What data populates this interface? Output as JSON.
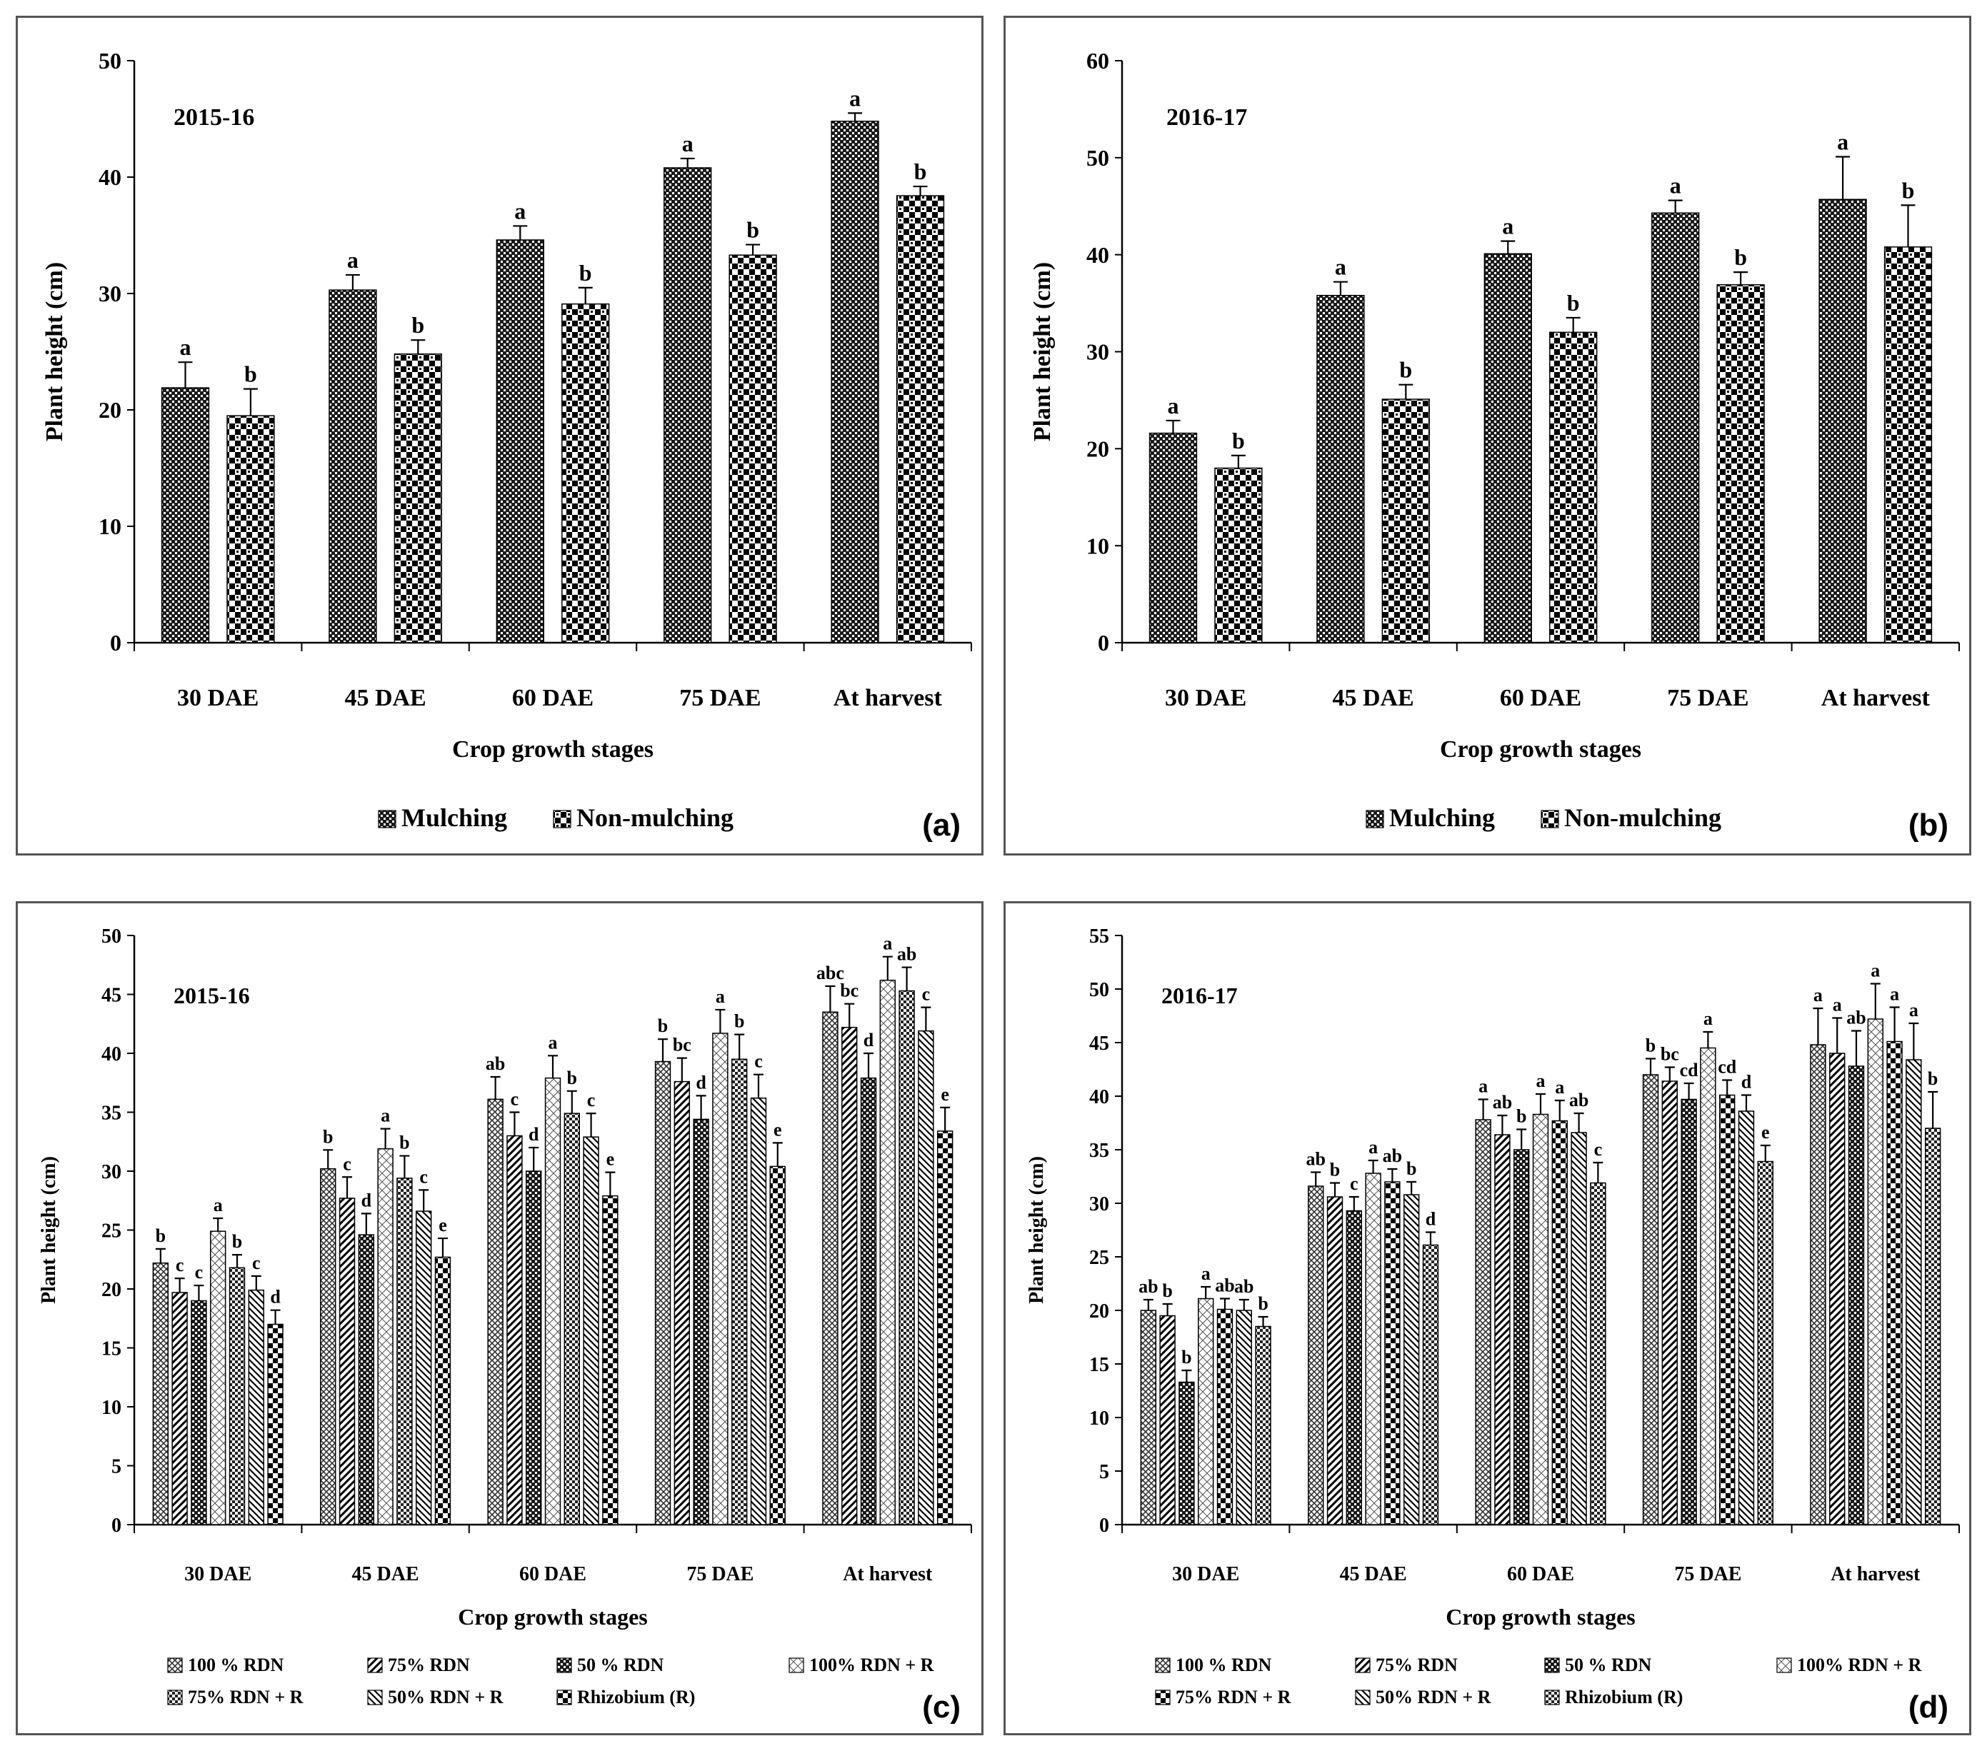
{
  "chart_data": [
    {
      "id": "a",
      "type": "bar",
      "panel_label": "(a)",
      "year_label": "2015-16",
      "xlabel": "Crop growth stages",
      "ylabel": "Plant height (cm)",
      "ylim": [
        0,
        50
      ],
      "ytick_step": 10,
      "categories": [
        "30 DAE",
        "45 DAE",
        "60 DAE",
        "75 DAE",
        "At harvest"
      ],
      "series": [
        {
          "name": "Mulching",
          "pattern": "dark-check",
          "values": [
            21.9,
            30.3,
            34.6,
            40.8,
            44.8
          ],
          "errors": [
            2.2,
            1.3,
            1.2,
            0.8,
            0.7
          ],
          "letters": [
            "a",
            "a",
            "a",
            "a",
            "a"
          ]
        },
        {
          "name": "Non-mulching",
          "pattern": "light-check",
          "values": [
            19.5,
            24.8,
            29.1,
            33.3,
            38.4
          ],
          "errors": [
            2.3,
            1.2,
            1.4,
            0.9,
            0.8
          ],
          "letters": [
            "b",
            "b",
            "b",
            "b",
            "b"
          ]
        }
      ]
    },
    {
      "id": "b",
      "type": "bar",
      "panel_label": "(b)",
      "year_label": "2016-17",
      "xlabel": "Crop growth stages",
      "ylabel": "Plant height (cm)",
      "ylim": [
        0,
        60
      ],
      "ytick_step": 10,
      "categories": [
        "30 DAE",
        "45 DAE",
        "60 DAE",
        "75 DAE",
        "At harvest"
      ],
      "series": [
        {
          "name": "Mulching",
          "pattern": "dark-check",
          "values": [
            21.6,
            35.8,
            40.1,
            44.3,
            45.7
          ],
          "errors": [
            1.3,
            1.4,
            1.3,
            1.3,
            4.4
          ],
          "letters": [
            "a",
            "a",
            "a",
            "a",
            "a"
          ]
        },
        {
          "name": "Non-mulching",
          "pattern": "light-check",
          "values": [
            18.0,
            25.1,
            32.0,
            36.9,
            40.8
          ],
          "errors": [
            1.3,
            1.5,
            1.5,
            1.3,
            4.3
          ],
          "letters": [
            "b",
            "b",
            "b",
            "b",
            "b"
          ]
        }
      ]
    },
    {
      "id": "c",
      "type": "bar",
      "panel_label": "(c)",
      "year_label": "2015-16",
      "xlabel": "Crop growth stages",
      "ylabel": "Plant height (cm)",
      "ylim": [
        0,
        50
      ],
      "ytick_step": 5,
      "categories": [
        "30 DAE",
        "45 DAE",
        "60 DAE",
        "75 DAE",
        "At harvest"
      ],
      "series": [
        {
          "name": "100 % RDN",
          "pattern": "lattice",
          "values": [
            22.2,
            30.2,
            36.1,
            39.3,
            43.5
          ],
          "errors": [
            1.2,
            1.6,
            1.9,
            1.9,
            2.2
          ],
          "letters": [
            "b",
            "b",
            "ab",
            "b",
            "abc"
          ]
        },
        {
          "name": "75% RDN",
          "pattern": "wide-diag",
          "values": [
            19.7,
            27.7,
            33.0,
            37.6,
            42.2
          ],
          "errors": [
            1.2,
            1.8,
            2.0,
            2.0,
            2.0
          ],
          "letters": [
            "c",
            "c",
            "c",
            "bc",
            "bc"
          ]
        },
        {
          "name": "50 % RDN",
          "pattern": "dark-check",
          "values": [
            19.0,
            24.6,
            30.0,
            34.4,
            37.9
          ],
          "errors": [
            1.3,
            1.8,
            2.0,
            2.0,
            2.1
          ],
          "letters": [
            "c",
            "d",
            "d",
            "d",
            "d"
          ]
        },
        {
          "name": "100% RDN + R",
          "pattern": "light-lattice",
          "values": [
            24.9,
            31.9,
            37.9,
            41.7,
            46.2
          ],
          "errors": [
            1.1,
            1.7,
            1.9,
            2.0,
            2.0
          ],
          "letters": [
            "a",
            "a",
            "a",
            "a",
            "a"
          ]
        },
        {
          "name": "75% RDN + R",
          "pattern": "tight-check",
          "values": [
            21.8,
            29.4,
            34.9,
            39.5,
            45.3
          ],
          "errors": [
            1.1,
            1.9,
            1.9,
            2.1,
            2.0
          ],
          "letters": [
            "b",
            "b",
            "b",
            "b",
            "ab"
          ]
        },
        {
          "name": "50% RDN + R",
          "pattern": "back-diag",
          "values": [
            19.9,
            26.6,
            32.9,
            36.2,
            41.9
          ],
          "errors": [
            1.2,
            1.8,
            2.0,
            2.0,
            2.0
          ],
          "letters": [
            "c",
            "c",
            "c",
            "c",
            "c"
          ]
        },
        {
          "name": "Rhizobium (R)",
          "pattern": "big-check",
          "values": [
            17.0,
            22.7,
            27.9,
            30.4,
            33.4
          ],
          "errors": [
            1.2,
            1.6,
            2.0,
            2.0,
            2.0
          ],
          "letters": [
            "d",
            "e",
            "e",
            "e",
            "e"
          ]
        }
      ]
    },
    {
      "id": "d",
      "type": "bar",
      "panel_label": "(d)",
      "year_label": "2016-17",
      "xlabel": "Crop growth stages",
      "ylabel": "Plant height (cm)",
      "ylim": [
        0,
        55
      ],
      "ytick_step": 5,
      "categories": [
        "30 DAE",
        "45 DAE",
        "60 DAE",
        "75 DAE",
        "At harvest"
      ],
      "series": [
        {
          "name": "100 % RDN",
          "pattern": "lattice",
          "values": [
            20.0,
            31.6,
            37.8,
            42.0,
            44.8
          ],
          "errors": [
            1.0,
            1.3,
            1.9,
            1.5,
            3.4
          ],
          "letters": [
            "ab",
            "ab",
            "a",
            "b",
            "a"
          ]
        },
        {
          "name": "75% RDN",
          "pattern": "wide-diag",
          "values": [
            19.5,
            30.6,
            36.4,
            41.4,
            44.0
          ],
          "errors": [
            1.1,
            1.3,
            1.8,
            1.3,
            3.3
          ],
          "letters": [
            "b",
            "b",
            "ab",
            "bc",
            "a"
          ]
        },
        {
          "name": "50 % RDN",
          "pattern": "dark-check",
          "values": [
            13.3,
            29.3,
            35.0,
            39.7,
            42.8
          ],
          "errors": [
            1.1,
            1.3,
            1.9,
            1.5,
            3.3
          ],
          "letters": [
            "b",
            "c",
            "b",
            "cd",
            "ab"
          ]
        },
        {
          "name": "100% RDN + R",
          "pattern": "light-lattice",
          "values": [
            21.1,
            32.8,
            38.3,
            44.5,
            47.2
          ],
          "errors": [
            1.1,
            1.2,
            1.9,
            1.5,
            3.3
          ],
          "letters": [
            "a",
            "a",
            "a",
            "a",
            "a"
          ]
        },
        {
          "name": "75% RDN + R",
          "pattern": "big-check",
          "values": [
            20.1,
            32.0,
            37.7,
            40.1,
            45.1
          ],
          "errors": [
            1.0,
            1.2,
            1.9,
            1.4,
            3.2
          ],
          "letters": [
            "ab",
            "ab",
            "a",
            "cd",
            "a"
          ]
        },
        {
          "name": "50% RDN + R",
          "pattern": "back-diag",
          "values": [
            20.0,
            30.8,
            36.6,
            38.6,
            43.4
          ],
          "errors": [
            1.0,
            1.2,
            1.8,
            1.5,
            3.4
          ],
          "letters": [
            "ab",
            "b",
            "ab",
            "d",
            "a"
          ]
        },
        {
          "name": "Rhizobium (R)",
          "pattern": "tight-check",
          "values": [
            18.5,
            26.1,
            31.9,
            33.9,
            37.0
          ],
          "errors": [
            0.9,
            1.2,
            1.9,
            1.5,
            3.4
          ],
          "letters": [
            "b",
            "d",
            "c",
            "e",
            "b"
          ]
        }
      ]
    }
  ]
}
